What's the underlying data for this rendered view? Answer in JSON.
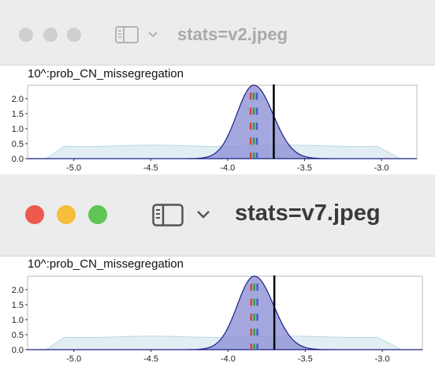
{
  "windows": [
    {
      "title": "stats=v2.jpeg",
      "active": false,
      "plot_label": "10^:prob_CN_missegregation",
      "traffic_colors": [
        "#cfcfcf",
        "#cfcfcf",
        "#cfcfcf"
      ]
    },
    {
      "title": "stats=v7.jpeg",
      "active": true,
      "plot_label": "10^:prob_CN_missegregation",
      "traffic_colors": [
        "#ee5a50",
        "#f5bd3a",
        "#5fc553"
      ]
    }
  ],
  "chart_data": [
    {
      "type": "area",
      "xlabel": "10^:prob_CN_missegregation",
      "x_ticks": [
        "-5.0",
        "-4.5",
        "-4.0",
        "-3.5",
        "-3.0"
      ],
      "y_ticks": [
        "0.0",
        "0.5",
        "1.0",
        "1.5",
        "2.0"
      ],
      "xlim": [
        -5.3,
        -2.77
      ],
      "ylim": [
        0,
        2.5
      ],
      "series": [
        {
          "role": "posterior",
          "color": "#8f92d6",
          "stroke": "#1c1f86",
          "peak_x": -3.83,
          "peak_y": 2.45,
          "sd_left": 0.11,
          "sd_right": 0.125
        },
        {
          "role": "prior",
          "color": "#d6e7ef",
          "stroke": "#b9d8e4",
          "level": 0.45,
          "x_start": -5.18,
          "x_end": -2.88
        }
      ],
      "reference_line": {
        "x": -3.7,
        "color": "#000000"
      },
      "marker_lines": [
        {
          "x": -3.85,
          "color": "#d9433a"
        },
        {
          "x": -3.83,
          "color": "#3a9a3e"
        },
        {
          "x": -3.81,
          "color": "#3b5fc4"
        }
      ]
    },
    {
      "type": "area",
      "xlabel": "10^:prob_CN_missegregation",
      "x_ticks": [
        "-5.0",
        "-4.5",
        "-4.0",
        "-3.5",
        "-3.0"
      ],
      "y_ticks": [
        "0.0",
        "0.5",
        "1.0",
        "1.5",
        "2.0"
      ],
      "xlim": [
        -5.3,
        -2.74
      ],
      "ylim": [
        0,
        2.5
      ],
      "series": [
        {
          "role": "posterior",
          "color": "#8f92d6",
          "stroke": "#1c1f86",
          "peak_x": -3.83,
          "peak_y": 2.45,
          "sd_left": 0.11,
          "sd_right": 0.125
        },
        {
          "role": "prior",
          "color": "#d6e7ef",
          "stroke": "#b9d8e4",
          "level": 0.45,
          "x_start": -5.18,
          "x_end": -2.88
        }
      ],
      "reference_line": {
        "x": -3.7,
        "color": "#000000"
      },
      "marker_lines": [
        {
          "x": -3.85,
          "color": "#d9433a"
        },
        {
          "x": -3.83,
          "color": "#3a9a3e"
        },
        {
          "x": -3.81,
          "color": "#3b5fc4"
        }
      ]
    }
  ]
}
